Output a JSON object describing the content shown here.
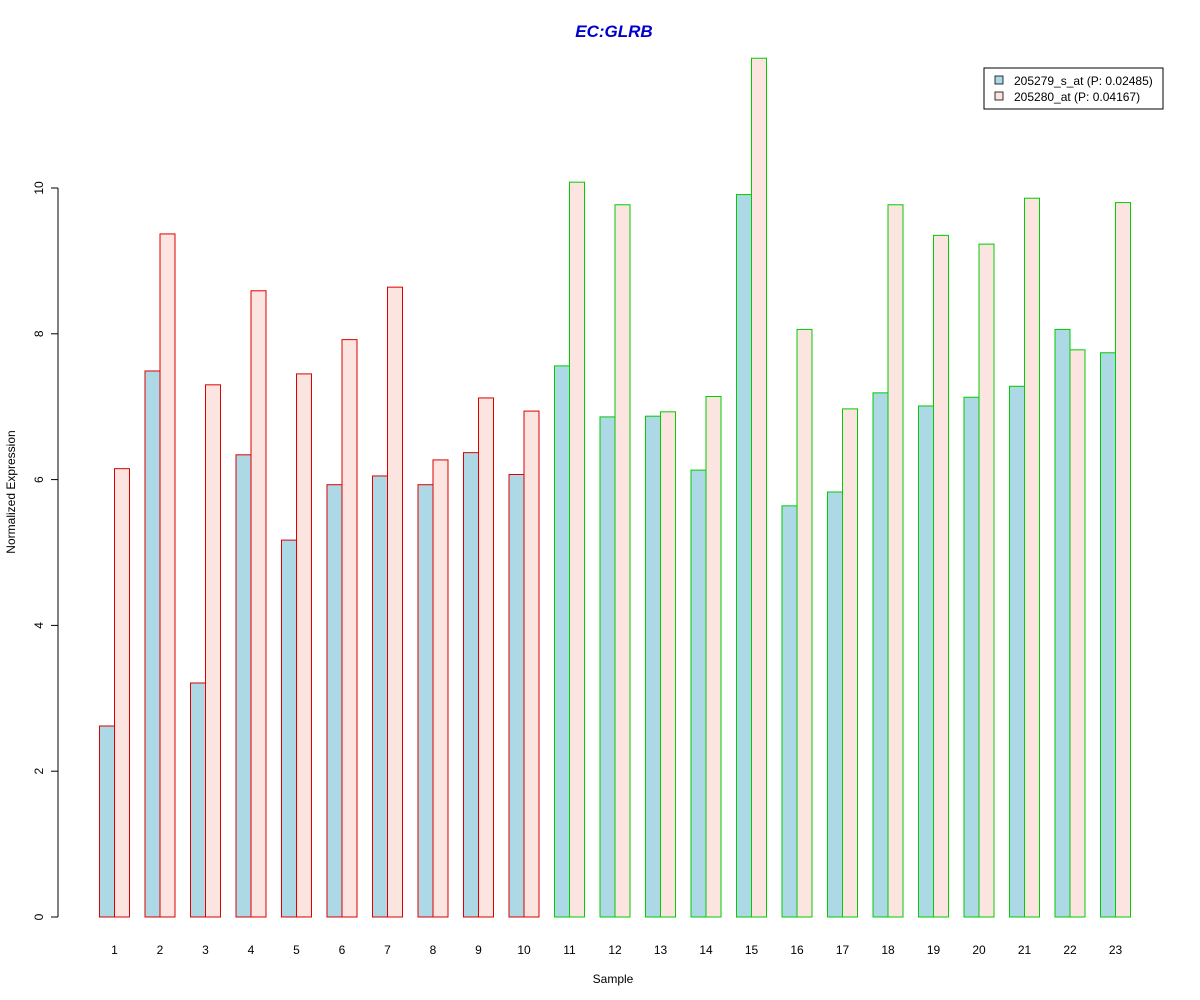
{
  "chart_data": {
    "type": "bar",
    "title": "EC:GLRB",
    "xlabel": "Sample",
    "ylabel": "Normalized Expression",
    "ylim": [
      0,
      12
    ],
    "yticks": [
      0,
      2,
      4,
      6,
      8,
      10
    ],
    "categories": [
      "1",
      "2",
      "3",
      "4",
      "5",
      "6",
      "7",
      "8",
      "9",
      "10",
      "11",
      "12",
      "13",
      "14",
      "15",
      "16",
      "17",
      "18",
      "19",
      "20",
      "21",
      "22",
      "23"
    ],
    "series": [
      {
        "name": "205279_s_at (P: 0.02485)",
        "fill": "#ADD8E6",
        "values": [
          2.62,
          7.49,
          3.21,
          6.34,
          5.17,
          5.93,
          6.05,
          5.93,
          6.37,
          6.07,
          7.56,
          6.86,
          6.87,
          6.13,
          9.91,
          5.64,
          5.83,
          7.19,
          7.01,
          7.13,
          7.28,
          8.06,
          7.74
        ]
      },
      {
        "name": "205280_at (P: 0.04167)",
        "fill": "#FCE4E0",
        "values": [
          6.15,
          9.37,
          7.3,
          8.59,
          7.45,
          7.92,
          8.64,
          6.27,
          7.12,
          6.94,
          10.08,
          9.77,
          6.93,
          7.14,
          11.78,
          8.06,
          6.97,
          9.77,
          9.35,
          9.23,
          9.86,
          7.78,
          9.8
        ]
      }
    ],
    "group_border_colors": [
      "#DD0000",
      "#DD0000",
      "#DD0000",
      "#DD0000",
      "#DD0000",
      "#DD0000",
      "#DD0000",
      "#DD0000",
      "#DD0000",
      "#DD0000",
      "#00CC00",
      "#00CC00",
      "#00CC00",
      "#00CC00",
      "#00CC00",
      "#00CC00",
      "#00CC00",
      "#00CC00",
      "#00CC00",
      "#00CC00",
      "#00CC00",
      "#00CC00",
      "#00CC00"
    ],
    "legend_position": "top-right",
    "grid": false
  }
}
